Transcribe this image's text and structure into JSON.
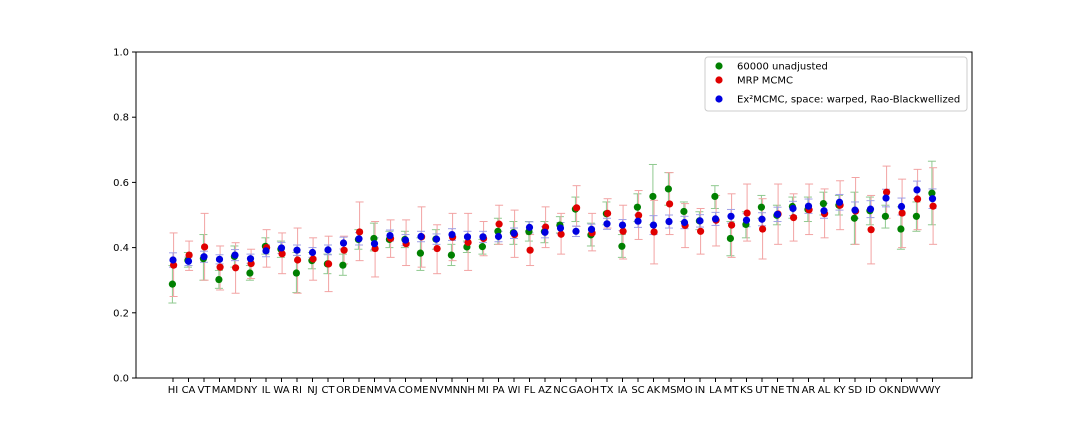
{
  "chart_data": {
    "type": "scatter",
    "xlabel": "",
    "ylabel": "",
    "ylim": [
      0.0,
      1.0
    ],
    "yticks": [
      0.0,
      0.2,
      0.4,
      0.6,
      0.8,
      1.0
    ],
    "ytick_labels": [
      "0.0",
      "0.2",
      "0.4",
      "0.6",
      "0.8",
      "1.0"
    ],
    "grid": false,
    "legend_position": "top-right",
    "categories": [
      "HI",
      "CA",
      "VT",
      "MA",
      "MD",
      "NY",
      "IL",
      "WA",
      "RI",
      "NJ",
      "CT",
      "OR",
      "DE",
      "NM",
      "VA",
      "CO",
      "ME",
      "NV",
      "MN",
      "NH",
      "MI",
      "PA",
      "WI",
      "FL",
      "AZ",
      "NC",
      "GA",
      "OH",
      "TX",
      "IA",
      "SC",
      "AK",
      "MS",
      "MO",
      "IN",
      "LA",
      "MT",
      "KS",
      "UT",
      "NE",
      "TN",
      "AR",
      "AL",
      "KY",
      "SD",
      "ID",
      "OK",
      "ND",
      "WV",
      "WY"
    ],
    "series": [
      {
        "name": "60000 unadjusted",
        "color": "#008000",
        "error_color": "#8fc98f",
        "values": [
          0.288,
          0.361,
          0.366,
          0.302,
          0.373,
          0.322,
          0.404,
          0.395,
          0.322,
          0.36,
          0.35,
          0.346,
          0.425,
          0.428,
          0.425,
          0.425,
          0.383,
          0.426,
          0.377,
          0.402,
          0.403,
          0.45,
          0.446,
          0.449,
          0.449,
          0.469,
          0.518,
          0.439,
          0.504,
          0.404,
          0.524,
          0.557,
          0.58,
          0.511,
          0.482,
          0.557,
          0.428,
          0.471,
          0.524,
          0.499,
          0.526,
          0.517,
          0.535,
          0.53,
          0.49,
          0.513,
          0.496,
          0.457,
          0.496,
          0.567
        ],
        "lower": [
          0.23,
          0.34,
          0.3,
          0.275,
          0.34,
          0.3,
          0.38,
          0.37,
          0.262,
          0.335,
          0.32,
          0.315,
          0.395,
          0.39,
          0.4,
          0.4,
          0.33,
          0.395,
          0.345,
          0.385,
          0.38,
          0.41,
          0.41,
          0.42,
          0.415,
          0.445,
          0.48,
          0.405,
          0.47,
          0.37,
          0.48,
          0.47,
          0.53,
          0.48,
          0.455,
          0.52,
          0.375,
          0.43,
          0.49,
          0.47,
          0.49,
          0.48,
          0.5,
          0.5,
          0.41,
          0.47,
          0.46,
          0.395,
          0.45,
          0.47
        ],
        "upper": [
          0.345,
          0.385,
          0.44,
          0.33,
          0.405,
          0.345,
          0.43,
          0.42,
          0.385,
          0.385,
          0.38,
          0.38,
          0.455,
          0.475,
          0.45,
          0.45,
          0.43,
          0.455,
          0.41,
          0.42,
          0.425,
          0.49,
          0.48,
          0.48,
          0.48,
          0.495,
          0.555,
          0.475,
          0.54,
          0.44,
          0.565,
          0.655,
          0.63,
          0.54,
          0.51,
          0.59,
          0.48,
          0.51,
          0.56,
          0.53,
          0.555,
          0.555,
          0.57,
          0.56,
          0.57,
          0.555,
          0.53,
          0.525,
          0.54,
          0.665
        ]
      },
      {
        "name": "MRP MCMC",
        "color": "#e00000",
        "error_color": "#f2a3a3",
        "values": [
          0.346,
          0.377,
          0.402,
          0.34,
          0.338,
          0.351,
          0.4,
          0.381,
          0.362,
          0.365,
          0.35,
          0.392,
          0.448,
          0.397,
          0.428,
          0.412,
          0.433,
          0.397,
          0.432,
          0.416,
          0.428,
          0.472,
          0.44,
          0.392,
          0.463,
          0.441,
          0.522,
          0.445,
          0.505,
          0.45,
          0.499,
          0.448,
          0.534,
          0.468,
          0.45,
          0.484,
          0.469,
          0.506,
          0.457,
          0.503,
          0.492,
          0.516,
          0.504,
          0.53,
          0.512,
          0.455,
          0.57,
          0.506,
          0.549,
          0.527
        ],
        "lower": [
          0.25,
          0.33,
          0.3,
          0.27,
          0.26,
          0.305,
          0.34,
          0.32,
          0.26,
          0.3,
          0.265,
          0.35,
          0.36,
          0.31,
          0.37,
          0.345,
          0.34,
          0.32,
          0.36,
          0.33,
          0.375,
          0.41,
          0.37,
          0.345,
          0.4,
          0.38,
          0.465,
          0.39,
          0.46,
          0.365,
          0.425,
          0.35,
          0.44,
          0.4,
          0.38,
          0.405,
          0.37,
          0.42,
          0.365,
          0.41,
          0.42,
          0.44,
          0.43,
          0.455,
          0.41,
          0.35,
          0.49,
          0.4,
          0.455,
          0.41
        ],
        "upper": [
          0.445,
          0.42,
          0.505,
          0.405,
          0.415,
          0.395,
          0.455,
          0.445,
          0.46,
          0.43,
          0.435,
          0.435,
          0.54,
          0.48,
          0.485,
          0.485,
          0.525,
          0.47,
          0.505,
          0.505,
          0.48,
          0.53,
          0.515,
          0.44,
          0.525,
          0.505,
          0.59,
          0.505,
          0.55,
          0.53,
          0.575,
          0.545,
          0.63,
          0.535,
          0.52,
          0.56,
          0.565,
          0.595,
          0.55,
          0.595,
          0.565,
          0.595,
          0.58,
          0.605,
          0.615,
          0.56,
          0.65,
          0.61,
          0.64,
          0.645
        ]
      },
      {
        "name": "Ex²MCMC, space: warped, Rao-Blackwellized",
        "color": "#0000e0",
        "error_color": "#9f9fe6",
        "values": [
          0.362,
          0.358,
          0.372,
          0.364,
          0.377,
          0.366,
          0.39,
          0.399,
          0.392,
          0.385,
          0.393,
          0.414,
          0.427,
          0.412,
          0.437,
          0.423,
          0.434,
          0.426,
          0.44,
          0.433,
          0.433,
          0.434,
          0.444,
          0.462,
          0.447,
          0.46,
          0.45,
          0.456,
          0.473,
          0.469,
          0.481,
          0.469,
          0.48,
          0.477,
          0.482,
          0.488,
          0.496,
          0.484,
          0.487,
          0.502,
          0.52,
          0.527,
          0.513,
          0.539,
          0.515,
          0.518,
          0.552,
          0.526,
          0.577,
          0.55
        ],
        "lower": [
          0.34,
          0.345,
          0.355,
          0.35,
          0.36,
          0.352,
          0.372,
          0.382,
          0.376,
          0.37,
          0.378,
          0.396,
          0.408,
          0.394,
          0.42,
          0.406,
          0.418,
          0.41,
          0.422,
          0.416,
          0.416,
          0.418,
          0.428,
          0.445,
          0.43,
          0.443,
          0.434,
          0.44,
          0.456,
          0.452,
          0.462,
          0.44,
          0.46,
          0.458,
          0.463,
          0.468,
          0.475,
          0.464,
          0.467,
          0.48,
          0.498,
          0.505,
          0.49,
          0.515,
          0.49,
          0.492,
          0.525,
          0.5,
          0.55,
          0.52
        ],
        "upper": [
          0.384,
          0.371,
          0.389,
          0.378,
          0.394,
          0.38,
          0.408,
          0.416,
          0.408,
          0.4,
          0.408,
          0.432,
          0.446,
          0.43,
          0.454,
          0.44,
          0.45,
          0.442,
          0.458,
          0.45,
          0.45,
          0.45,
          0.46,
          0.479,
          0.464,
          0.477,
          0.466,
          0.472,
          0.49,
          0.486,
          0.5,
          0.498,
          0.5,
          0.496,
          0.501,
          0.508,
          0.517,
          0.504,
          0.507,
          0.524,
          0.542,
          0.549,
          0.536,
          0.563,
          0.54,
          0.544,
          0.579,
          0.552,
          0.604,
          0.58
        ]
      }
    ]
  }
}
